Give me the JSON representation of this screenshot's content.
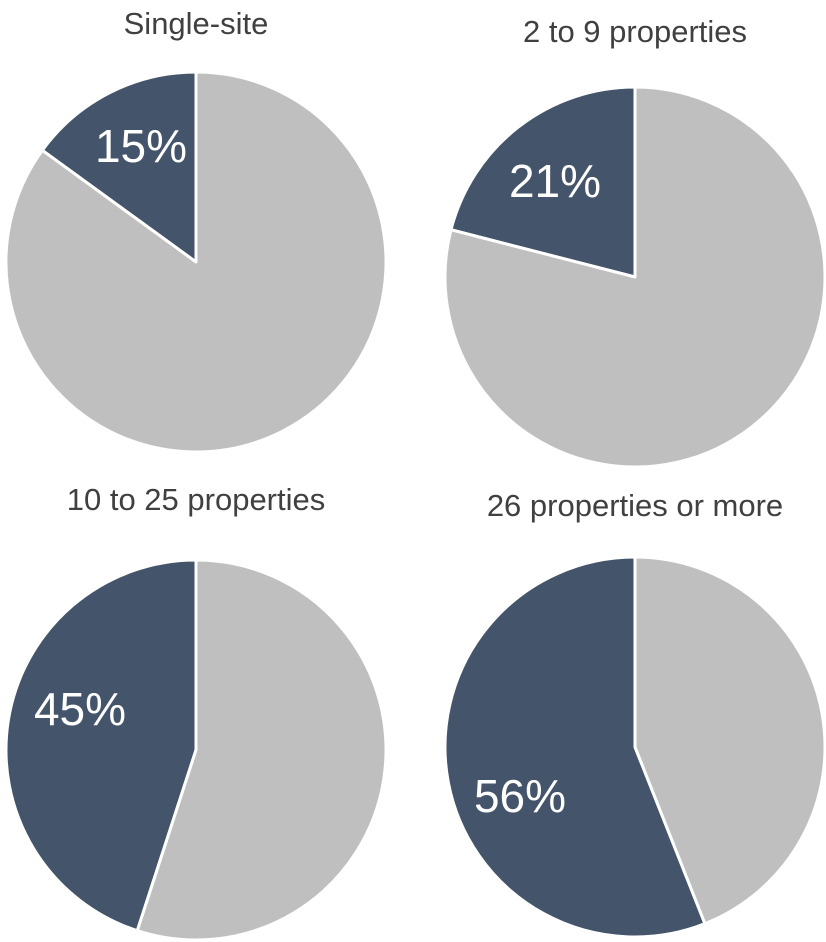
{
  "colors": {
    "highlight": "#44546A",
    "remainder": "#BFBFBF",
    "divider": "#FFFFFF",
    "title": "#404040"
  },
  "chart_data": [
    {
      "type": "pie",
      "title": "Single-site",
      "slices": [
        {
          "value": 15,
          "label": "15%",
          "color": "#44546A"
        },
        {
          "value": 85,
          "label": "",
          "color": "#BFBFBF"
        }
      ]
    },
    {
      "type": "pie",
      "title": "2 to 9 properties",
      "slices": [
        {
          "value": 21,
          "label": "21%",
          "color": "#44546A"
        },
        {
          "value": 79,
          "label": "",
          "color": "#BFBFBF"
        }
      ]
    },
    {
      "type": "pie",
      "title": "10 to 25 properties",
      "slices": [
        {
          "value": 45,
          "label": "45%",
          "color": "#44546A"
        },
        {
          "value": 55,
          "label": "",
          "color": "#BFBFBF"
        }
      ]
    },
    {
      "type": "pie",
      "title": "26 properties or more",
      "slices": [
        {
          "value": 56,
          "label": "56%",
          "color": "#44546A"
        },
        {
          "value": 44,
          "label": "",
          "color": "#BFBFBF"
        }
      ]
    }
  ]
}
